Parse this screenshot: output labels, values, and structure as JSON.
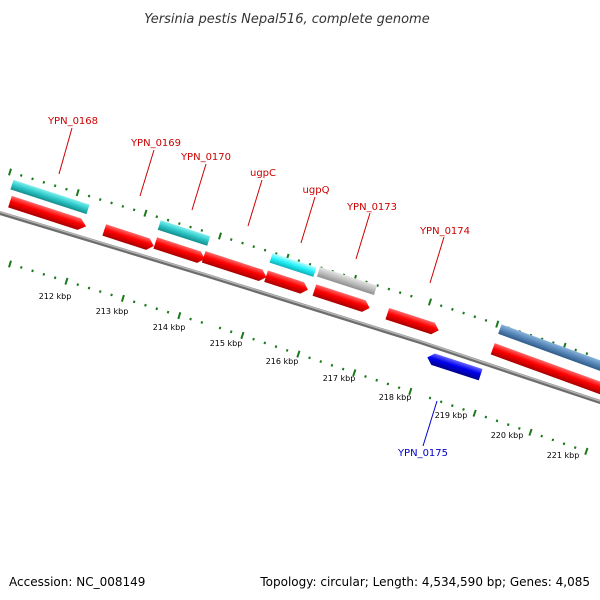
{
  "title": "Yersinia pestis Nepal516, complete genome",
  "footer": {
    "accession": "Accession: NC_008149",
    "summary": "Topology: circular; Length: 4,534,590 bp; Genes: 4,085"
  },
  "colors": {
    "forward_cds": "#ff0000",
    "reverse_cds": "#0000ee",
    "label_forward": "#cc0000",
    "label_reverse": "#0000cc",
    "tick": "#1a7a1a",
    "backbone": "#808080"
  },
  "genes": [
    {
      "name": "YPN_0168",
      "color": "#ff0000"
    },
    {
      "name": "YPN_0169",
      "color": "#ff0000"
    },
    {
      "name": "YPN_0170",
      "color": "#ff0000"
    },
    {
      "name": "ugpC",
      "color": "#ff0000"
    },
    {
      "name": "ugpQ",
      "color": "#ff0000"
    },
    {
      "name": "YPN_0173",
      "color": "#ff0000"
    },
    {
      "name": "YPN_0174",
      "color": "#ff0000"
    },
    {
      "name": "YPN_0175",
      "color": "#0000ee"
    }
  ],
  "kbp_labels": [
    "212 kbp",
    "213 kbp",
    "214 kbp",
    "215 kbp",
    "216 kbp",
    "217 kbp",
    "218 kbp",
    "219 kbp",
    "220 kbp",
    "221 kbp"
  ]
}
